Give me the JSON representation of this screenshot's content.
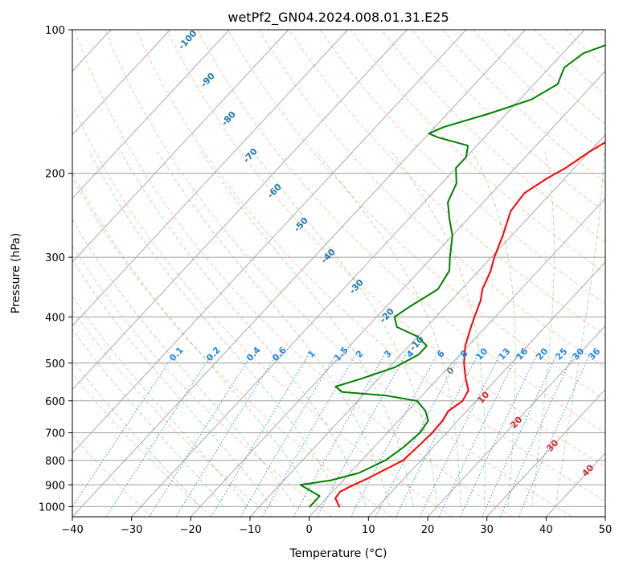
{
  "chart_data": {
    "type": "line",
    "title": "wetPf2_GN04.2024.008.01.31.E25",
    "xlabel": "Temperature (°C)",
    "ylabel": "Pressure (hPa)",
    "xlim": [
      -40,
      50
    ],
    "ylim": [
      1050,
      100
    ],
    "y_scale": "log",
    "grid": true,
    "x_ticks": [
      -40,
      -30,
      -20,
      -10,
      0,
      10,
      20,
      30,
      40,
      50
    ],
    "y_ticks": [
      100,
      200,
      300,
      400,
      500,
      600,
      700,
      800,
      900,
      1000
    ],
    "isotherm_labels": [
      -100,
      -90,
      -80,
      -70,
      -60,
      -50,
      -40,
      -30,
      -20,
      -10
    ],
    "dry_adiabat_labels": [
      0,
      10,
      20,
      30,
      40
    ],
    "mixing_ratio_labels": [
      "0.1",
      "0.2",
      "0.4",
      "0.6",
      "1",
      "1.5",
      "2",
      "3",
      "4",
      "6",
      "8",
      "10",
      "13",
      "16",
      "20",
      "25",
      "30",
      "36"
    ],
    "colors": {
      "temperature": "#ff0000",
      "dewpoint": "#008000",
      "isotherm_label": "#1f77b4",
      "mixing_ratio": "#1e88e5",
      "dry_adiabat": "#ff7f50",
      "dry_adiabat_label": "#d62728",
      "moist_adiabat": "#2ca02c"
    },
    "series": [
      {
        "name": "Temperature",
        "color": "#ff0000",
        "points": [
          {
            "p": 1000,
            "t": 3.5
          },
          {
            "p": 960,
            "t": 1.5
          },
          {
            "p": 930,
            "t": 1.3
          },
          {
            "p": 900,
            "t": 2.5
          },
          {
            "p": 870,
            "t": 4.0
          },
          {
            "p": 850,
            "t": 4.8
          },
          {
            "p": 800,
            "t": 7.0
          },
          {
            "p": 750,
            "t": 7.3
          },
          {
            "p": 700,
            "t": 7.6
          },
          {
            "p": 660,
            "t": 7.4
          },
          {
            "p": 630,
            "t": 6.9
          },
          {
            "p": 600,
            "t": 7.7
          },
          {
            "p": 570,
            "t": 7.0
          },
          {
            "p": 540,
            "t": 4.8
          },
          {
            "p": 500,
            "t": 2.0
          },
          {
            "p": 460,
            "t": -0.5
          },
          {
            "p": 420,
            "t": -2.5
          },
          {
            "p": 400,
            "t": -3.5
          },
          {
            "p": 370,
            "t": -5.0
          },
          {
            "p": 350,
            "t": -6.5
          },
          {
            "p": 320,
            "t": -8.0
          },
          {
            "p": 300,
            "t": -9.5
          },
          {
            "p": 270,
            "t": -11.5
          },
          {
            "p": 240,
            "t": -14.0
          },
          {
            "p": 220,
            "t": -14.5
          },
          {
            "p": 205,
            "t": -13.0
          },
          {
            "p": 195,
            "t": -11.5
          },
          {
            "p": 180,
            "t": -10.0
          },
          {
            "p": 170,
            "t": -8.5
          },
          {
            "p": 160,
            "t": -7.0
          },
          {
            "p": 150,
            "t": -7.0
          },
          {
            "p": 140,
            "t": -8.0
          },
          {
            "p": 130,
            "t": -8.5
          },
          {
            "p": 120,
            "t": -7.5
          },
          {
            "p": 110,
            "t": -7.5
          },
          {
            "p": 100,
            "t": -8.5
          }
        ]
      },
      {
        "name": "Dewpoint",
        "color": "#008000",
        "points": [
          {
            "p": 1000,
            "t": -1.5
          },
          {
            "p": 975,
            "t": -1.5
          },
          {
            "p": 950,
            "t": -1.5
          },
          {
            "p": 920,
            "t": -4.5
          },
          {
            "p": 900,
            "t": -6.5
          },
          {
            "p": 880,
            "t": -2.0
          },
          {
            "p": 850,
            "t": 1.5
          },
          {
            "p": 800,
            "t": 4.0
          },
          {
            "p": 750,
            "t": 5.0
          },
          {
            "p": 700,
            "t": 5.5
          },
          {
            "p": 660,
            "t": 5.0
          },
          {
            "p": 630,
            "t": 3.0
          },
          {
            "p": 600,
            "t": 0.0
          },
          {
            "p": 585,
            "t": -6.0
          },
          {
            "p": 575,
            "t": -14.0
          },
          {
            "p": 560,
            "t": -16.0
          },
          {
            "p": 540,
            "t": -13.0
          },
          {
            "p": 510,
            "t": -9.0
          },
          {
            "p": 480,
            "t": -7.0
          },
          {
            "p": 460,
            "t": -7.0
          },
          {
            "p": 440,
            "t": -10.0
          },
          {
            "p": 420,
            "t": -15.0
          },
          {
            "p": 400,
            "t": -17.0
          },
          {
            "p": 380,
            "t": -16.0
          },
          {
            "p": 350,
            "t": -14.0
          },
          {
            "p": 320,
            "t": -15.0
          },
          {
            "p": 300,
            "t": -17.0
          },
          {
            "p": 270,
            "t": -20.0
          },
          {
            "p": 250,
            "t": -23.0
          },
          {
            "p": 230,
            "t": -26.0
          },
          {
            "p": 210,
            "t": -27.5
          },
          {
            "p": 195,
            "t": -30.0
          },
          {
            "p": 185,
            "t": -30.0
          },
          {
            "p": 175,
            "t": -31.5
          },
          {
            "p": 168,
            "t": -38.0
          },
          {
            "p": 165,
            "t": -40.0
          },
          {
            "p": 160,
            "t": -38.5
          },
          {
            "p": 150,
            "t": -33.0
          },
          {
            "p": 140,
            "t": -28.0
          },
          {
            "p": 130,
            "t": -26.0
          },
          {
            "p": 120,
            "t": -27.5
          },
          {
            "p": 112,
            "t": -26.5
          },
          {
            "p": 106,
            "t": -23.0
          },
          {
            "p": 100,
            "t": -20.0
          }
        ]
      }
    ]
  }
}
